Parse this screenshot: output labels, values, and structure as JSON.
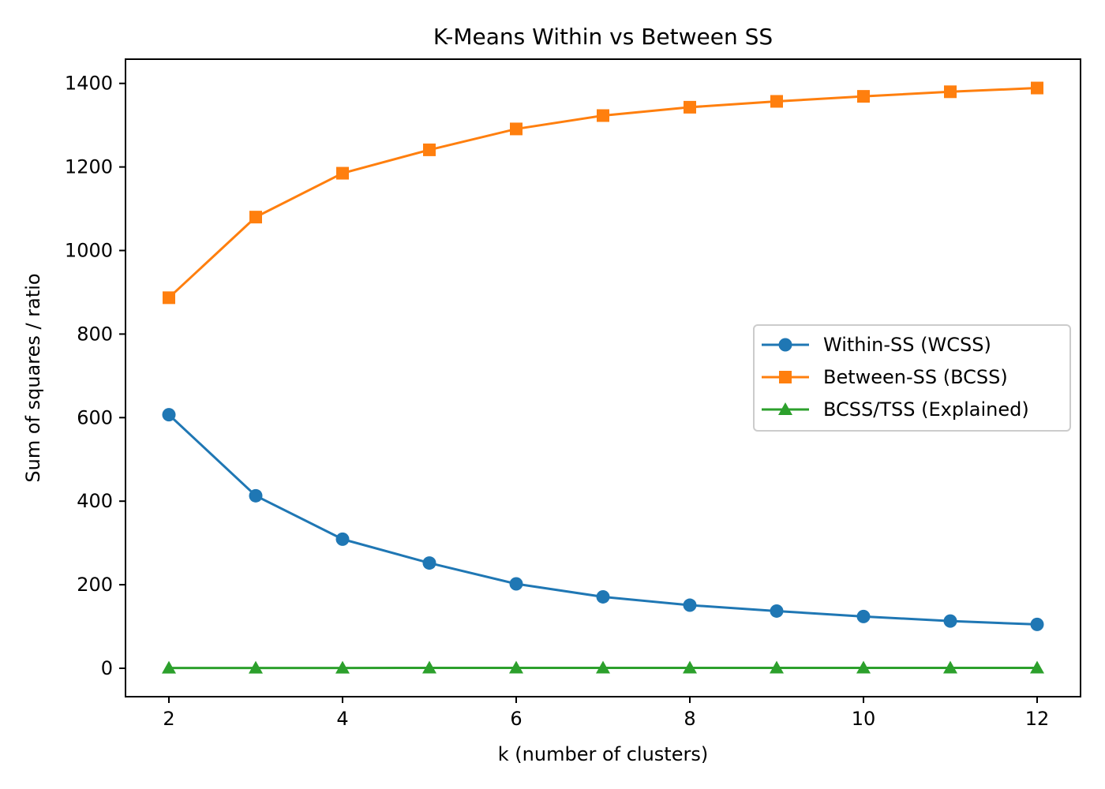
{
  "chart_data": {
    "type": "line",
    "title": "K-Means Within vs Between SS",
    "xlabel": "k (number of clusters)",
    "ylabel": "Sum of squares / ratio",
    "x": [
      2,
      3,
      4,
      5,
      6,
      7,
      8,
      9,
      10,
      11,
      12
    ],
    "xticks": [
      2,
      4,
      6,
      8,
      10,
      12
    ],
    "yticks": [
      0,
      200,
      400,
      600,
      800,
      1000,
      1200,
      1400
    ],
    "xlim": [
      1.5,
      12.5
    ],
    "ylim": [
      -68,
      1458
    ],
    "grid": false,
    "legend_position": "center-right",
    "series": [
      {
        "name": "Within-SS (WCSS)",
        "color": "#1f77b4",
        "marker": "circle",
        "values": [
          607,
          413,
          309,
          252,
          202,
          171,
          151,
          137,
          124,
          113,
          105
        ]
      },
      {
        "name": "Between-SS (BCSS)",
        "color": "#ff7f0e",
        "marker": "square",
        "values": [
          887,
          1080,
          1185,
          1241,
          1291,
          1323,
          1343,
          1357,
          1369,
          1380,
          1389
        ]
      },
      {
        "name": "BCSS/TSS (Explained)",
        "color": "#2ca02c",
        "marker": "triangle",
        "values": [
          0.59,
          0.72,
          0.79,
          0.83,
          0.86,
          0.89,
          0.9,
          0.91,
          0.92,
          0.92,
          0.93
        ]
      }
    ]
  }
}
